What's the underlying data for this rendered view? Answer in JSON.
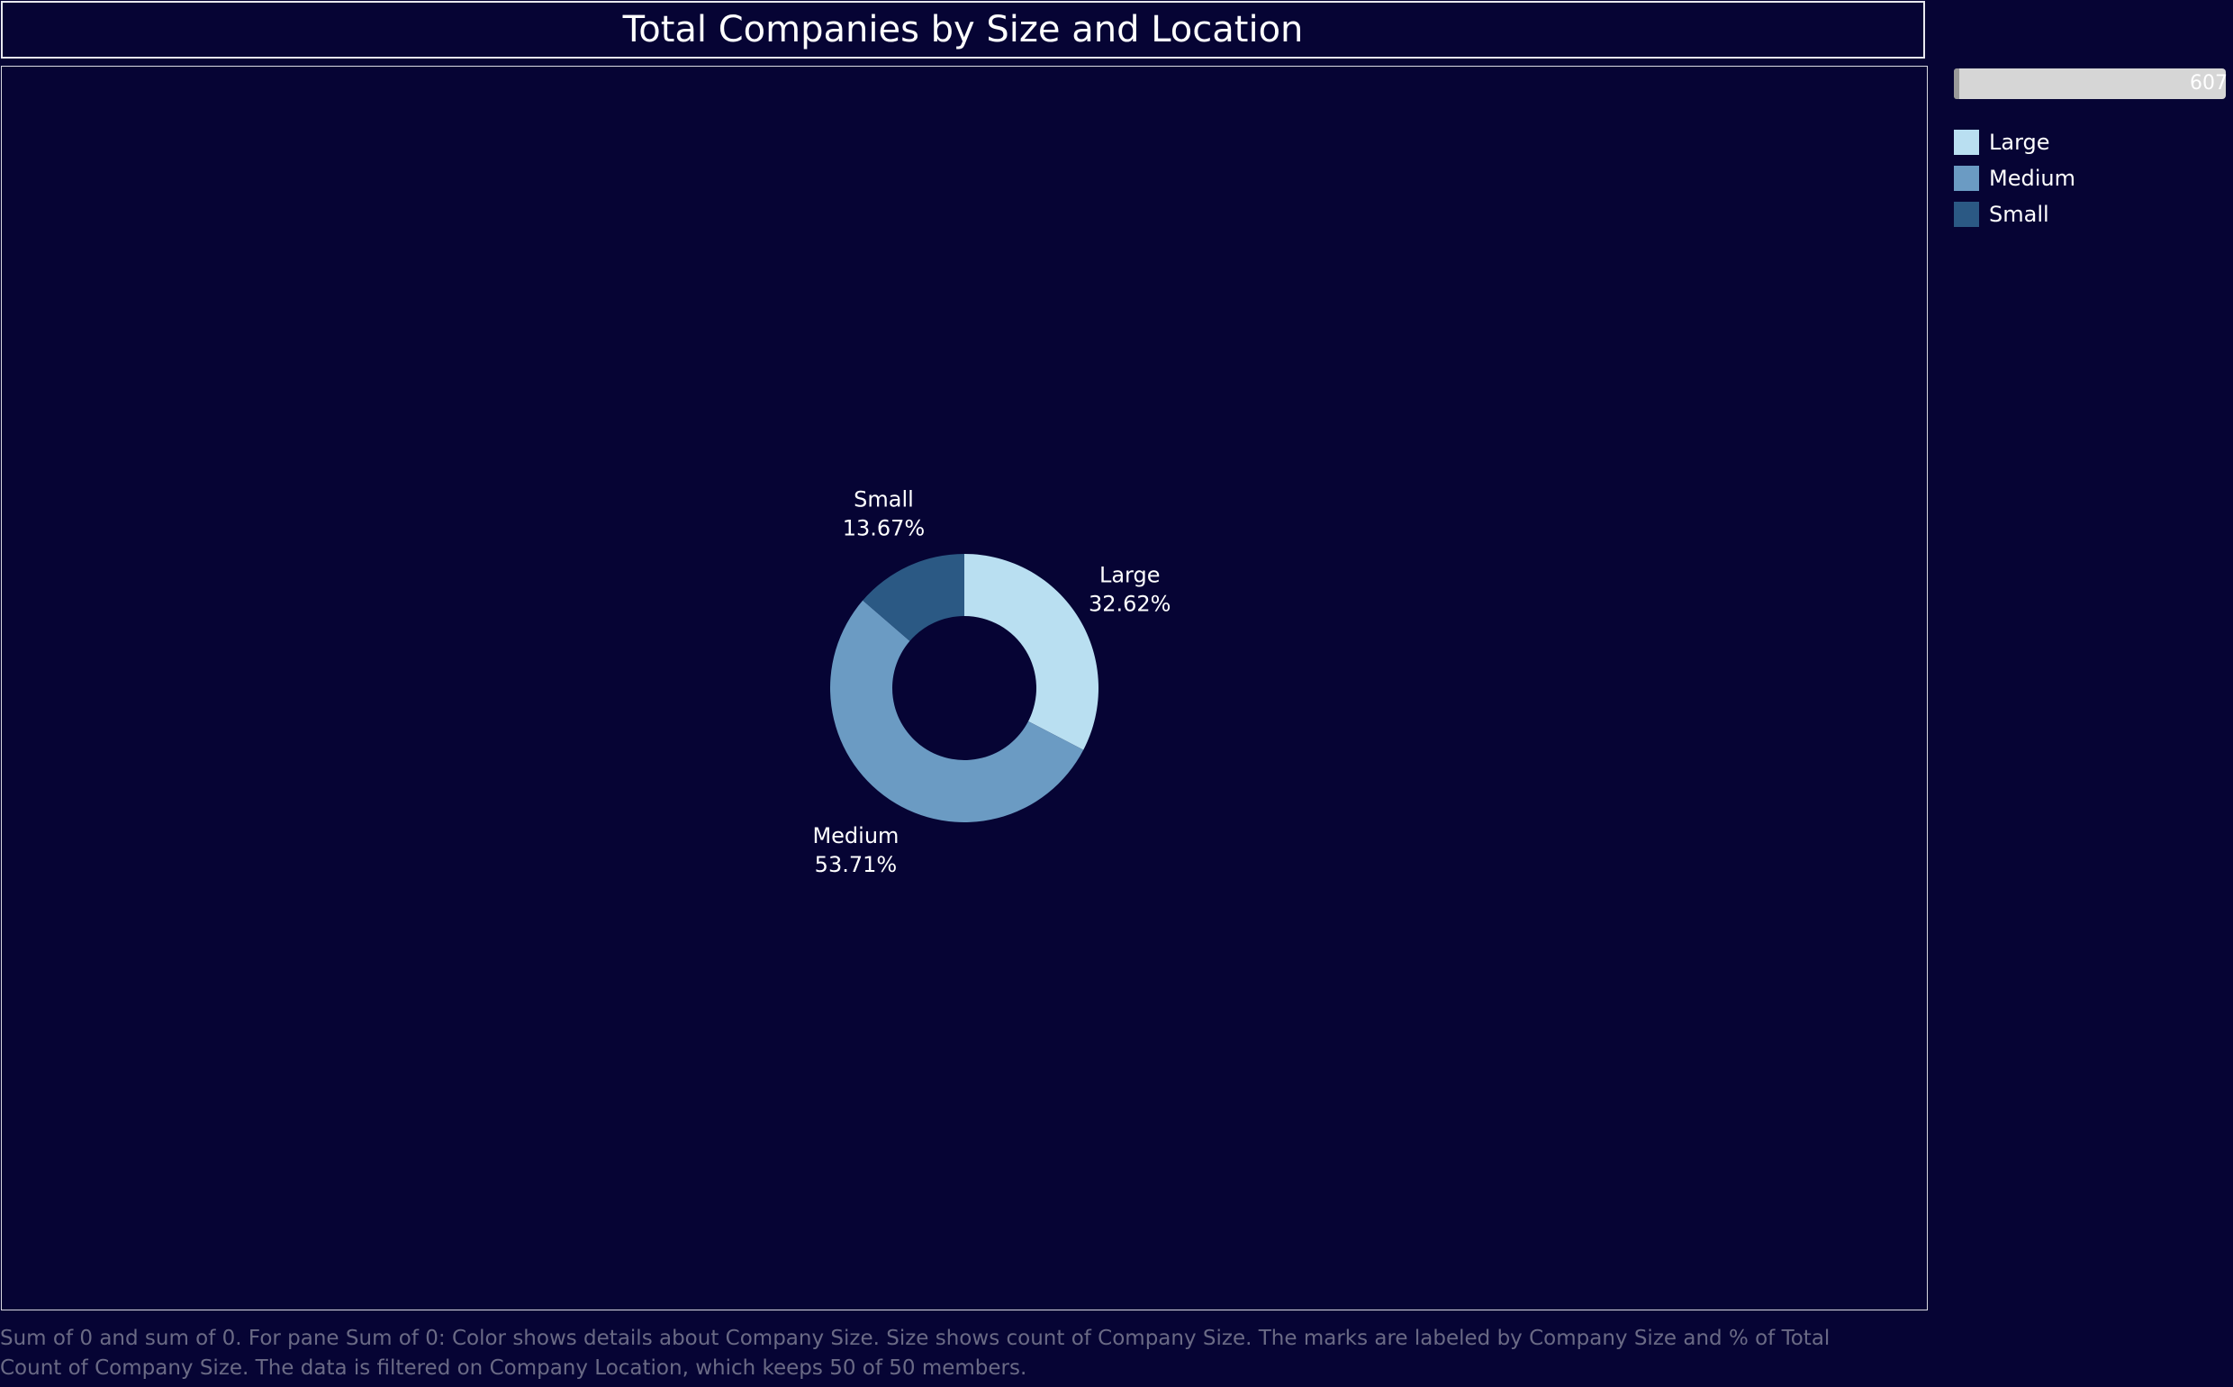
{
  "title": "Total Companies by Size and Location",
  "filter": {
    "value_label": "607"
  },
  "legend": [
    {
      "label": "Large",
      "color": "#b9dff1"
    },
    {
      "label": "Medium",
      "color": "#6b9bc3"
    },
    {
      "label": "Small",
      "color": "#2b5984"
    }
  ],
  "caption": "Sum of 0 and sum of 0.  For pane Sum of 0:  Color shows details about Company Size.  Size shows count of Company Size.  The marks are labeled by Company Size and % of Total Count of Company Size. The data is filtered on Company Location, which keeps 50 of 50 members.",
  "chart_data": {
    "type": "pie",
    "donut": true,
    "title": "Total Companies by Size and Location",
    "categories": [
      "Large",
      "Medium",
      "Small"
    ],
    "values": [
      32.62,
      53.71,
      13.67
    ],
    "value_labels": [
      "32.62%",
      "53.71%",
      "13.67%"
    ],
    "colors": [
      "#b9dff1",
      "#6b9bc3",
      "#2b5984"
    ],
    "start_angle_deg": 0,
    "direction": "clockwise",
    "legend": "top-right"
  }
}
